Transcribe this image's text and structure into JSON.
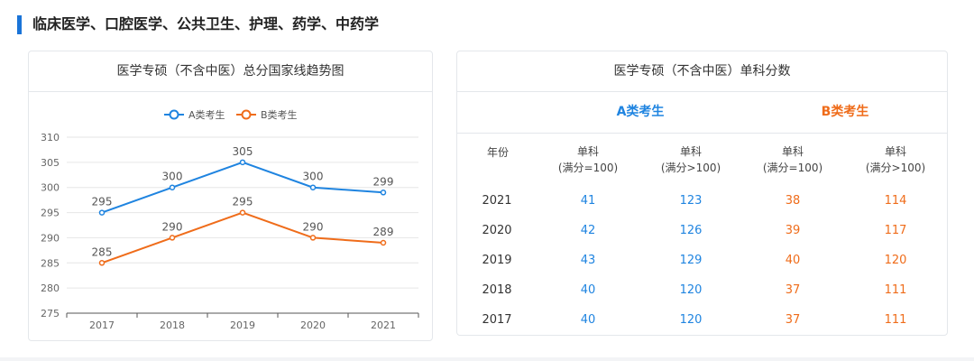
{
  "section": {
    "title": "临床医学、口腔医学、公共卫生、护理、药学、中药学"
  },
  "colors": {
    "series_a": "#1f84e0",
    "series_b": "#ef6c1a",
    "accent": "#1a74d8"
  },
  "chart_data": {
    "type": "line",
    "title": "医学专硕（不含中医）总分国家线趋势图",
    "categories": [
      "2017",
      "2018",
      "2019",
      "2020",
      "2021"
    ],
    "series": [
      {
        "name": "A类考生",
        "values": [
          295,
          300,
          305,
          300,
          299
        ]
      },
      {
        "name": "B类考生",
        "values": [
          285,
          290,
          295,
          290,
          289
        ]
      }
    ],
    "yticks": [
      "275",
      "280",
      "285",
      "290",
      "295",
      "300",
      "305",
      "310"
    ],
    "ylim": [
      275,
      310
    ],
    "grid": true,
    "legend": "top-center",
    "data_labels": true
  },
  "table": {
    "title": "医学专硕（不含中医）单科分数",
    "group_a": "A类考生",
    "group_b": "B类考生",
    "col_year": "年份",
    "col_heads": [
      [
        "单科",
        "(满分=100)"
      ],
      [
        "单科",
        "(满分>100)"
      ],
      [
        "单科",
        "(满分=100)"
      ],
      [
        "单科",
        "(满分>100)"
      ]
    ],
    "rows": [
      {
        "year": "2021",
        "a1": "41",
        "a2": "123",
        "b1": "38",
        "b2": "114"
      },
      {
        "year": "2020",
        "a1": "42",
        "a2": "126",
        "b1": "39",
        "b2": "117"
      },
      {
        "year": "2019",
        "a1": "43",
        "a2": "129",
        "b1": "40",
        "b2": "120"
      },
      {
        "year": "2018",
        "a1": "40",
        "a2": "120",
        "b1": "37",
        "b2": "111"
      },
      {
        "year": "2017",
        "a1": "40",
        "a2": "120",
        "b1": "37",
        "b2": "111"
      }
    ]
  }
}
